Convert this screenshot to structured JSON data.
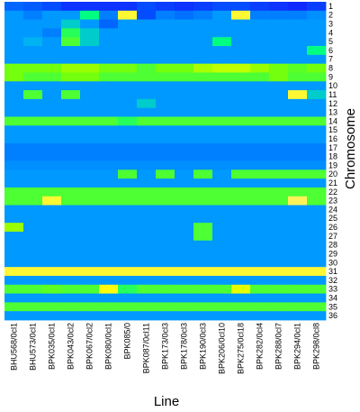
{
  "chart_data": {
    "type": "heatmap",
    "title": "",
    "xlabel": "Line",
    "ylabel": "Chromosome",
    "x_categories": [
      "BHU568/0cl1",
      "BHU573/0cl1",
      "BPK035/0cl1",
      "BPK043/0cl2",
      "BPK067/0cl2",
      "BPK080/0cl1",
      "BPK085/0",
      "BPK087/0cl11",
      "BPK173/0cl3",
      "BPK178/0cl3",
      "BPK190/0cl3",
      "BPK206/0cl10",
      "BPK275/0cl18",
      "BPK282/0cl4",
      "BPK288/0cl7",
      "BPK294/0cl1",
      "BPK298/0cl8"
    ],
    "y_categories": [
      "1",
      "2",
      "3",
      "4",
      "5",
      "6",
      "7",
      "8",
      "9",
      "10",
      "11",
      "12",
      "13",
      "14",
      "15",
      "16",
      "17",
      "18",
      "19",
      "20",
      "21",
      "22",
      "23",
      "24",
      "25",
      "26",
      "27",
      "28",
      "29",
      "30",
      "31",
      "32",
      "33",
      "34",
      "35",
      "36"
    ],
    "color_scale": [
      "#1f00ff",
      "#0055ff",
      "#00aaff",
      "#00ff80",
      "#80ff00",
      "#ffff00",
      "#ffee80"
    ],
    "value_range": [
      0,
      1
    ],
    "values": [
      [
        0.2,
        0.18,
        0.15,
        0.1,
        0.1,
        0.1,
        0.1,
        0.15,
        0.12,
        0.1,
        0.12,
        0.15,
        0.15,
        0.12,
        0.1,
        0.08,
        0.12
      ],
      [
        0.3,
        0.25,
        0.3,
        0.3,
        0.5,
        0.25,
        0.9,
        0.15,
        0.25,
        0.22,
        0.25,
        0.3,
        0.9,
        0.25,
        0.25,
        0.25,
        0.28
      ],
      [
        0.3,
        0.3,
        0.3,
        0.4,
        0.3,
        0.2,
        0.3,
        0.3,
        0.3,
        0.3,
        0.3,
        0.3,
        0.3,
        0.3,
        0.3,
        0.3,
        0.3
      ],
      [
        0.3,
        0.3,
        0.25,
        0.55,
        0.4,
        0.3,
        0.3,
        0.3,
        0.3,
        0.3,
        0.3,
        0.3,
        0.3,
        0.3,
        0.3,
        0.3,
        0.3
      ],
      [
        0.3,
        0.35,
        0.3,
        0.6,
        0.4,
        0.3,
        0.3,
        0.3,
        0.3,
        0.3,
        0.3,
        0.5,
        0.3,
        0.3,
        0.3,
        0.3,
        0.3
      ],
      [
        0.3,
        0.3,
        0.3,
        0.3,
        0.3,
        0.3,
        0.3,
        0.3,
        0.3,
        0.3,
        0.3,
        0.3,
        0.3,
        0.3,
        0.3,
        0.3,
        0.5
      ],
      [
        0.3,
        0.3,
        0.3,
        0.3,
        0.3,
        0.3,
        0.3,
        0.3,
        0.3,
        0.3,
        0.3,
        0.3,
        0.3,
        0.3,
        0.3,
        0.3,
        0.3
      ],
      [
        0.65,
        0.65,
        0.65,
        0.7,
        0.7,
        0.65,
        0.65,
        0.6,
        0.65,
        0.65,
        0.72,
        0.75,
        0.75,
        0.7,
        0.65,
        0.62,
        0.65
      ],
      [
        0.65,
        0.6,
        0.6,
        0.65,
        0.65,
        0.6,
        0.6,
        0.6,
        0.6,
        0.6,
        0.6,
        0.6,
        0.6,
        0.6,
        0.65,
        0.6,
        0.6
      ],
      [
        0.3,
        0.3,
        0.3,
        0.3,
        0.3,
        0.3,
        0.3,
        0.3,
        0.3,
        0.3,
        0.3,
        0.3,
        0.3,
        0.3,
        0.3,
        0.3,
        0.3
      ],
      [
        0.3,
        0.6,
        0.3,
        0.6,
        0.3,
        0.3,
        0.3,
        0.3,
        0.3,
        0.3,
        0.3,
        0.3,
        0.3,
        0.3,
        0.3,
        0.9,
        0.4
      ],
      [
        0.3,
        0.3,
        0.3,
        0.3,
        0.3,
        0.3,
        0.3,
        0.4,
        0.3,
        0.3,
        0.3,
        0.3,
        0.3,
        0.3,
        0.3,
        0.3,
        0.3
      ],
      [
        0.3,
        0.3,
        0.3,
        0.3,
        0.3,
        0.3,
        0.3,
        0.3,
        0.3,
        0.3,
        0.3,
        0.3,
        0.3,
        0.3,
        0.3,
        0.3,
        0.3
      ],
      [
        0.6,
        0.6,
        0.6,
        0.6,
        0.6,
        0.6,
        0.55,
        0.6,
        0.6,
        0.6,
        0.6,
        0.6,
        0.6,
        0.6,
        0.6,
        0.6,
        0.6
      ],
      [
        0.3,
        0.3,
        0.3,
        0.3,
        0.3,
        0.3,
        0.3,
        0.3,
        0.3,
        0.3,
        0.3,
        0.3,
        0.3,
        0.3,
        0.3,
        0.3,
        0.3
      ],
      [
        0.3,
        0.3,
        0.3,
        0.3,
        0.3,
        0.3,
        0.3,
        0.3,
        0.3,
        0.3,
        0.3,
        0.3,
        0.3,
        0.3,
        0.3,
        0.3,
        0.3
      ],
      [
        0.25,
        0.25,
        0.25,
        0.25,
        0.25,
        0.25,
        0.25,
        0.25,
        0.25,
        0.25,
        0.25,
        0.25,
        0.25,
        0.25,
        0.25,
        0.25,
        0.25
      ],
      [
        0.25,
        0.25,
        0.25,
        0.25,
        0.25,
        0.25,
        0.25,
        0.25,
        0.25,
        0.25,
        0.25,
        0.25,
        0.25,
        0.25,
        0.25,
        0.25,
        0.25
      ],
      [
        0.28,
        0.28,
        0.28,
        0.28,
        0.28,
        0.28,
        0.28,
        0.28,
        0.28,
        0.28,
        0.28,
        0.28,
        0.28,
        0.28,
        0.28,
        0.28,
        0.28
      ],
      [
        0.3,
        0.3,
        0.3,
        0.3,
        0.3,
        0.3,
        0.6,
        0.3,
        0.6,
        0.3,
        0.6,
        0.3,
        0.6,
        0.6,
        0.6,
        0.6,
        0.6
      ],
      [
        0.3,
        0.3,
        0.3,
        0.3,
        0.3,
        0.3,
        0.3,
        0.3,
        0.3,
        0.3,
        0.3,
        0.3,
        0.3,
        0.3,
        0.3,
        0.3,
        0.3
      ],
      [
        0.6,
        0.6,
        0.6,
        0.6,
        0.6,
        0.6,
        0.6,
        0.6,
        0.6,
        0.6,
        0.6,
        0.6,
        0.6,
        0.6,
        0.6,
        0.6,
        0.6
      ],
      [
        0.6,
        0.6,
        0.9,
        0.6,
        0.6,
        0.6,
        0.6,
        0.6,
        0.6,
        0.6,
        0.6,
        0.6,
        0.6,
        0.6,
        0.6,
        0.95,
        0.6
      ],
      [
        0.3,
        0.3,
        0.3,
        0.3,
        0.3,
        0.3,
        0.3,
        0.3,
        0.3,
        0.3,
        0.3,
        0.3,
        0.3,
        0.3,
        0.3,
        0.3,
        0.3
      ],
      [
        0.3,
        0.3,
        0.3,
        0.3,
        0.3,
        0.3,
        0.3,
        0.3,
        0.3,
        0.3,
        0.3,
        0.3,
        0.3,
        0.3,
        0.3,
        0.3,
        0.3
      ],
      [
        0.7,
        0.3,
        0.3,
        0.3,
        0.3,
        0.3,
        0.3,
        0.3,
        0.3,
        0.3,
        0.6,
        0.3,
        0.3,
        0.3,
        0.3,
        0.3,
        0.3
      ],
      [
        0.3,
        0.3,
        0.3,
        0.3,
        0.3,
        0.3,
        0.3,
        0.3,
        0.3,
        0.3,
        0.6,
        0.3,
        0.3,
        0.3,
        0.3,
        0.3,
        0.3
      ],
      [
        0.3,
        0.3,
        0.3,
        0.3,
        0.3,
        0.3,
        0.3,
        0.3,
        0.3,
        0.3,
        0.3,
        0.3,
        0.3,
        0.3,
        0.3,
        0.3,
        0.3
      ],
      [
        0.3,
        0.3,
        0.3,
        0.3,
        0.3,
        0.3,
        0.3,
        0.3,
        0.3,
        0.3,
        0.3,
        0.3,
        0.3,
        0.3,
        0.3,
        0.3,
        0.3
      ],
      [
        0.3,
        0.3,
        0.3,
        0.3,
        0.3,
        0.3,
        0.3,
        0.3,
        0.3,
        0.3,
        0.3,
        0.3,
        0.3,
        0.3,
        0.3,
        0.3,
        0.3
      ],
      [
        0.9,
        0.9,
        0.9,
        0.9,
        0.9,
        0.9,
        0.9,
        0.9,
        0.9,
        0.9,
        0.9,
        0.9,
        0.9,
        0.9,
        0.9,
        0.9,
        0.9
      ],
      [
        0.3,
        0.3,
        0.3,
        0.3,
        0.3,
        0.3,
        0.3,
        0.3,
        0.3,
        0.3,
        0.3,
        0.3,
        0.3,
        0.3,
        0.3,
        0.3,
        0.3
      ],
      [
        0.6,
        0.6,
        0.62,
        0.6,
        0.6,
        0.85,
        0.55,
        0.6,
        0.6,
        0.6,
        0.6,
        0.6,
        0.8,
        0.6,
        0.6,
        0.6,
        0.6
      ],
      [
        0.3,
        0.3,
        0.3,
        0.3,
        0.3,
        0.3,
        0.3,
        0.3,
        0.3,
        0.3,
        0.3,
        0.3,
        0.3,
        0.3,
        0.3,
        0.3,
        0.3
      ],
      [
        0.6,
        0.6,
        0.6,
        0.6,
        0.6,
        0.6,
        0.6,
        0.6,
        0.6,
        0.6,
        0.6,
        0.6,
        0.6,
        0.6,
        0.6,
        0.6,
        0.6
      ],
      [
        0.3,
        0.3,
        0.3,
        0.3,
        0.3,
        0.3,
        0.3,
        0.3,
        0.3,
        0.3,
        0.3,
        0.3,
        0.3,
        0.3,
        0.3,
        0.3,
        0.3
      ]
    ],
    "grid": false,
    "legend": "none"
  }
}
